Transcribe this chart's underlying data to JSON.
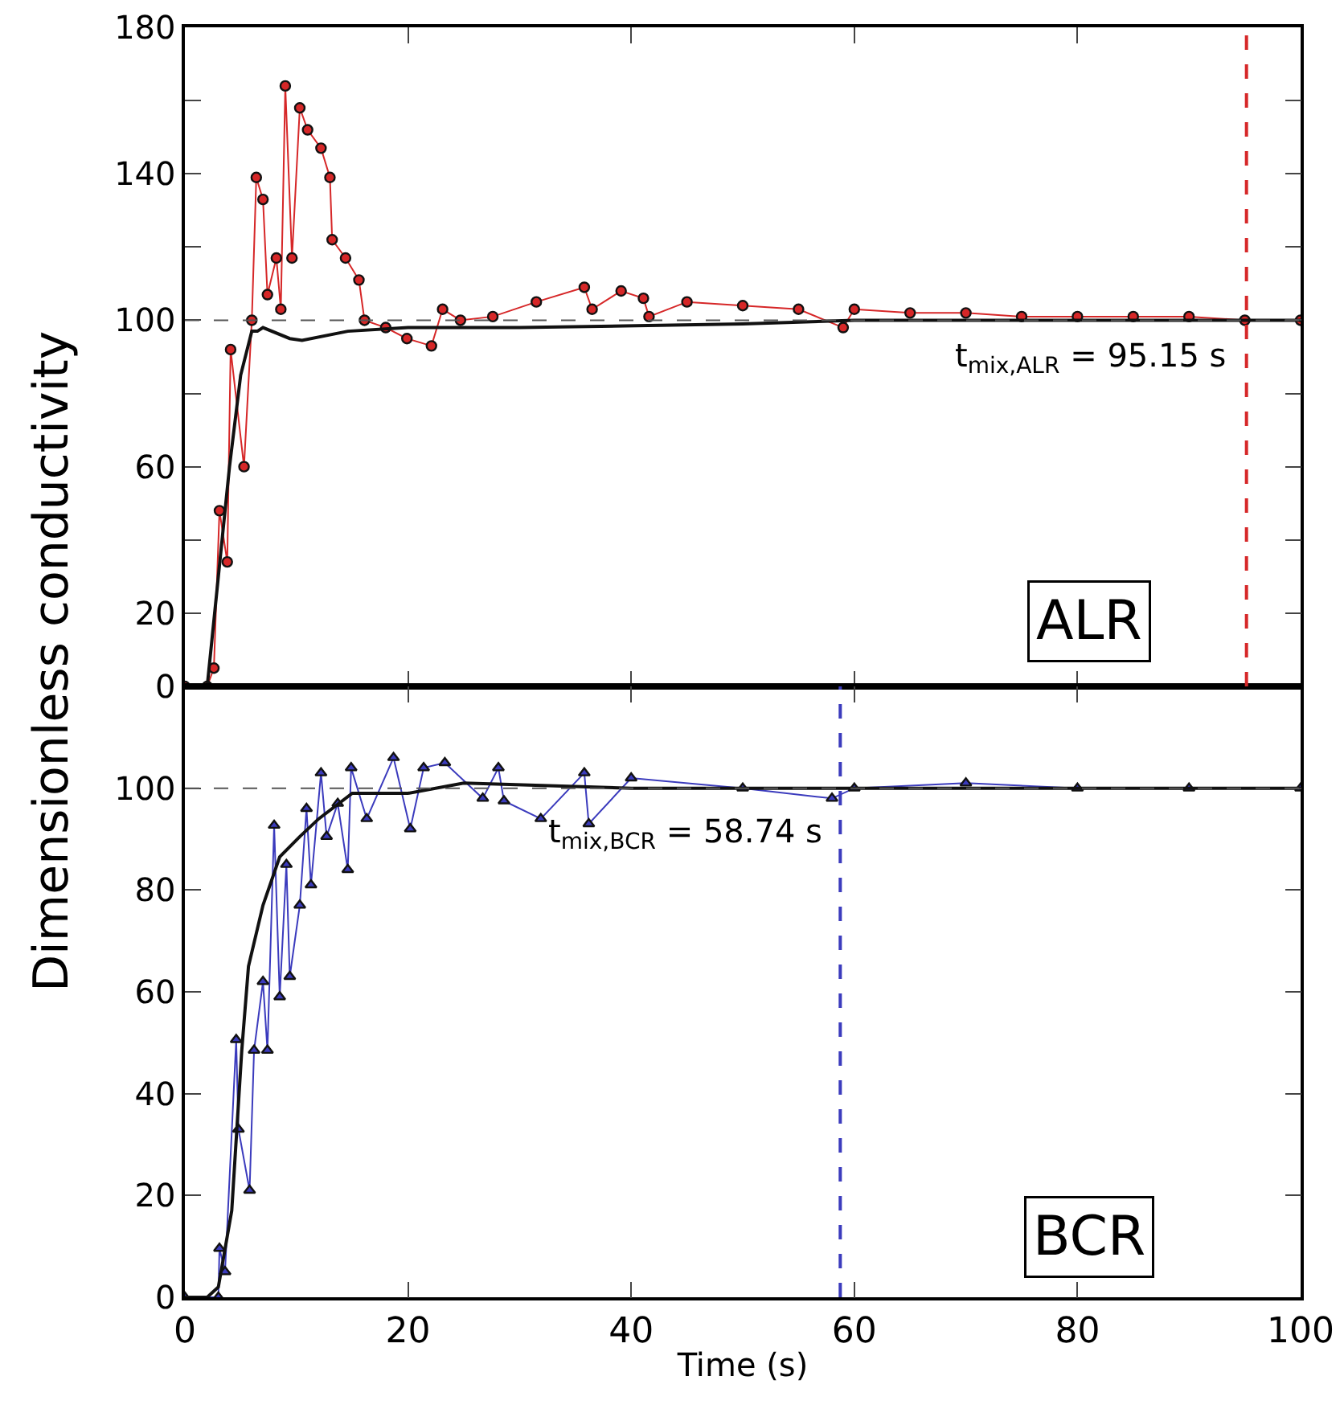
{
  "chart_data": [
    {
      "type": "line",
      "ylabel": "Dimensionless conductivity",
      "annotations": [
        "ALR"
      ],
      "tick_labels": "y",
      "xlim": [
        0,
        100
      ],
      "xticks": [
        0,
        20,
        40,
        60,
        80,
        100
      ],
      "ylim": [
        0,
        180
      ],
      "yticks": [
        0,
        20,
        {
          "value": 40,
          "label": null
        },
        60,
        {
          "value": 80,
          "label": null
        },
        100,
        {
          "value": 120,
          "label": null
        },
        140,
        {
          "value": 160,
          "label": null
        },
        180
      ],
      "series": [
        {
          "color": "#d62728",
          "marker": "circle",
          "x": [
            0,
            2,
            2.6,
            3.1,
            3.8,
            4.1,
            5.3,
            6.0,
            6.4,
            7.0,
            7.4,
            8.2,
            8.6,
            9.0,
            9.6,
            10.3,
            11.0,
            12.2,
            13.0,
            13.2,
            14.4,
            15.6,
            16.1,
            18.0,
            19.9,
            22.1,
            23.1,
            24.7,
            27.6,
            31.5,
            35.8,
            36.5,
            39.1,
            41.1,
            41.6,
            45,
            50,
            55,
            59,
            60,
            65,
            70,
            75,
            80,
            85,
            90,
            95,
            100
          ],
          "values": [
            0,
            0,
            5,
            48,
            34,
            92,
            60,
            100,
            139,
            133,
            107,
            117,
            103,
            164,
            117,
            158,
            152,
            147,
            139,
            122,
            117,
            111,
            100,
            98,
            95,
            93,
            103,
            100,
            101,
            105,
            109,
            103,
            108,
            106,
            101,
            105,
            104,
            103,
            98,
            103,
            102,
            102,
            101,
            101,
            101,
            101,
            100,
            100
          ]
        },
        {
          "color": "#111111",
          "marker": "none",
          "x": [
            0,
            2,
            3,
            4,
            5,
            6,
            6.5,
            7,
            9.4,
            10.5,
            14.6,
            20,
            30,
            50,
            60,
            100
          ],
          "values": [
            0,
            0,
            30,
            60,
            85,
            97,
            97,
            98,
            95,
            94.5,
            97,
            98,
            98,
            99,
            100,
            100
          ]
        }
      ],
      "ref_lines": [
        {
          "axis": "y",
          "value": 100,
          "color": "#555555",
          "line_style": "dashed"
        },
        {
          "axis": "x",
          "value": 95.15,
          "label": "t$_{mix,ALR}$ = 95.15 s",
          "color": "#d62728",
          "line_style": "dashed"
        }
      ]
    },
    {
      "type": "line",
      "xlabel": "Time (s)",
      "annotations": [
        "BCR"
      ],
      "xlim": [
        0,
        100
      ],
      "xticks": [
        0,
        20,
        40,
        60,
        80,
        100
      ],
      "ylim": [
        0,
        120
      ],
      "yticks": [
        0,
        20,
        40,
        60,
        80,
        100
      ],
      "series": [
        {
          "color": "#3b3bbd",
          "marker": "triangle",
          "x": [
            0,
            3,
            3.1,
            3.6,
            4.6,
            4.8,
            5.8,
            6.2,
            7.0,
            7.4,
            8.0,
            8.5,
            9.1,
            9.4,
            10.3,
            10.9,
            11.3,
            12.2,
            12.7,
            13.7,
            14.6,
            14.9,
            16.3,
            18.7,
            20.2,
            21.4,
            23.3,
            26.7,
            28.1,
            28.6,
            31.9,
            35.8,
            36.2,
            40,
            50,
            58,
            60,
            70,
            80,
            90,
            100
          ],
          "values": [
            0,
            0,
            9.6,
            5,
            50.6,
            33,
            21,
            48.5,
            62,
            48.5,
            92.7,
            59,
            85,
            63,
            77,
            96,
            81,
            103,
            90.5,
            97,
            84,
            104,
            94,
            106,
            92,
            104,
            105,
            98,
            104,
            97.5,
            94,
            103,
            93,
            102,
            100,
            98,
            100,
            101,
            100,
            100,
            100
          ]
        },
        {
          "color": "#111111",
          "marker": "none",
          "x": [
            0,
            2,
            3,
            4.2,
            5.1,
            5.7,
            7,
            8.5,
            10.3,
            12,
            15,
            20,
            25,
            40,
            100
          ],
          "values": [
            0,
            0,
            2,
            17,
            48.5,
            65,
            77,
            86.5,
            90.5,
            94,
            99,
            99,
            101,
            100,
            100
          ]
        }
      ],
      "ref_lines": [
        {
          "axis": "y",
          "value": 100,
          "color": "#555555",
          "line_style": "dashed"
        },
        {
          "axis": "x",
          "value": 58.74,
          "label": "t$_{mix,BCR}$ = 58.74 s",
          "color": "#3b3bbd",
          "line_style": "dashed"
        }
      ]
    }
  ]
}
